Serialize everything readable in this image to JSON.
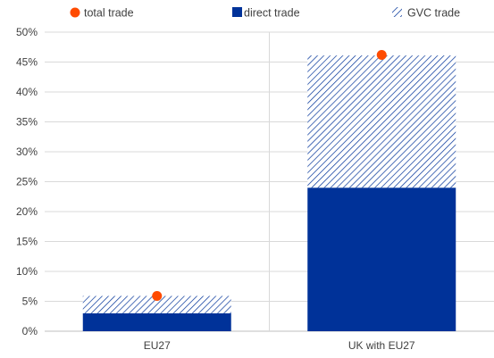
{
  "chart_data": {
    "type": "bar",
    "stacked": true,
    "categories": [
      "EU27",
      "UK with EU27"
    ],
    "series": [
      {
        "name": "direct trade",
        "kind": "bar",
        "values": [
          3.0,
          24.0
        ],
        "color": "#003299"
      },
      {
        "name": "GVC trade",
        "kind": "bar-hatched",
        "values": [
          2.9,
          22.1
        ],
        "color": "#003299"
      },
      {
        "name": "total trade",
        "kind": "point",
        "values": [
          5.9,
          46.2
        ],
        "color": "#FF4B00"
      }
    ],
    "ylim": [
      0,
      50
    ],
    "yticks": [
      "0%",
      "5%",
      "10%",
      "15%",
      "20%",
      "25%",
      "30%",
      "35%",
      "40%",
      "45%",
      "50%"
    ],
    "legend": "top",
    "grid": true
  }
}
